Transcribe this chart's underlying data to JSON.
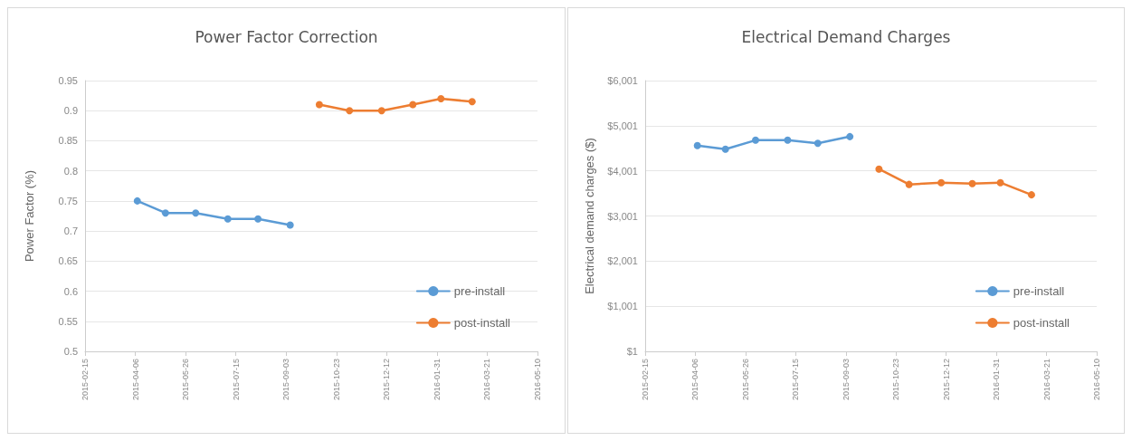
{
  "chart_data": [
    {
      "type": "line",
      "title": "Power Factor Correction",
      "ylabel": "Power Factor (%)",
      "marker": "circle",
      "grid": "y",
      "legend": "bottom right",
      "xlim": [
        "2015-02-15",
        "2016-05-10"
      ],
      "xticks": [
        "2015-02-15",
        "2015-04-06",
        "2015-05-26",
        "2015-07-15",
        "2015-09-03",
        "2015-10-23",
        "2015-12-12",
        "2016-01-31",
        "2016-03-21",
        "2016-05-10"
      ],
      "ylim": [
        0.5,
        0.95
      ],
      "yticks": [
        0.5,
        0.55,
        0.6,
        0.65,
        0.7,
        0.75,
        0.8,
        0.85,
        0.9,
        0.95
      ],
      "series": [
        {
          "name": "pre-install",
          "color": "#5b9bd5",
          "x": [
            "2015-04-08",
            "2015-05-06",
            "2015-06-05",
            "2015-07-07",
            "2015-08-06",
            "2015-09-07"
          ],
          "values": [
            0.75,
            0.73,
            0.73,
            0.72,
            0.72,
            0.71
          ]
        },
        {
          "name": "post-install",
          "color": "#ed7d31",
          "x": [
            "2015-10-06",
            "2015-11-05",
            "2015-12-07",
            "2016-01-07",
            "2016-02-04",
            "2016-03-06"
          ],
          "values": [
            0.91,
            0.9,
            0.9,
            0.91,
            0.92,
            0.915
          ]
        }
      ]
    },
    {
      "type": "line",
      "title": "Electrical Demand Charges",
      "ylabel": "Electrical demand charges ($)",
      "marker": "circle",
      "grid": "y",
      "legend": "bottom right",
      "xlim": [
        "2015-02-15",
        "2016-05-10"
      ],
      "xticks": [
        "2015-02-15",
        "2015-04-06",
        "2015-05-26",
        "2015-07-15",
        "2015-09-03",
        "2015-10-23",
        "2015-12-12",
        "2016-01-31",
        "2016-03-21",
        "2016-05-10"
      ],
      "ylim": [
        1,
        6001
      ],
      "yticks": [
        {
          "value": 1,
          "label": "$1"
        },
        {
          "value": 1001,
          "label": "$1,001"
        },
        {
          "value": 2001,
          "label": "$2,001"
        },
        {
          "value": 3001,
          "label": "$3,001"
        },
        {
          "value": 4001,
          "label": "$4,001"
        },
        {
          "value": 5001,
          "label": "$5,001"
        },
        {
          "value": 6001,
          "label": "$6,001"
        }
      ],
      "series": [
        {
          "name": "pre-install",
          "color": "#5b9bd5",
          "x": [
            "2015-04-08",
            "2015-05-06",
            "2015-06-05",
            "2015-07-07",
            "2015-08-06",
            "2015-09-07"
          ],
          "values": [
            4560,
            4480,
            4680,
            4680,
            4610,
            4760
          ]
        },
        {
          "name": "post-install",
          "color": "#ed7d31",
          "x": [
            "2015-10-06",
            "2015-11-05",
            "2015-12-07",
            "2016-01-07",
            "2016-02-04",
            "2016-03-06"
          ],
          "values": [
            4040,
            3700,
            3740,
            3720,
            3740,
            3470
          ]
        }
      ]
    }
  ]
}
